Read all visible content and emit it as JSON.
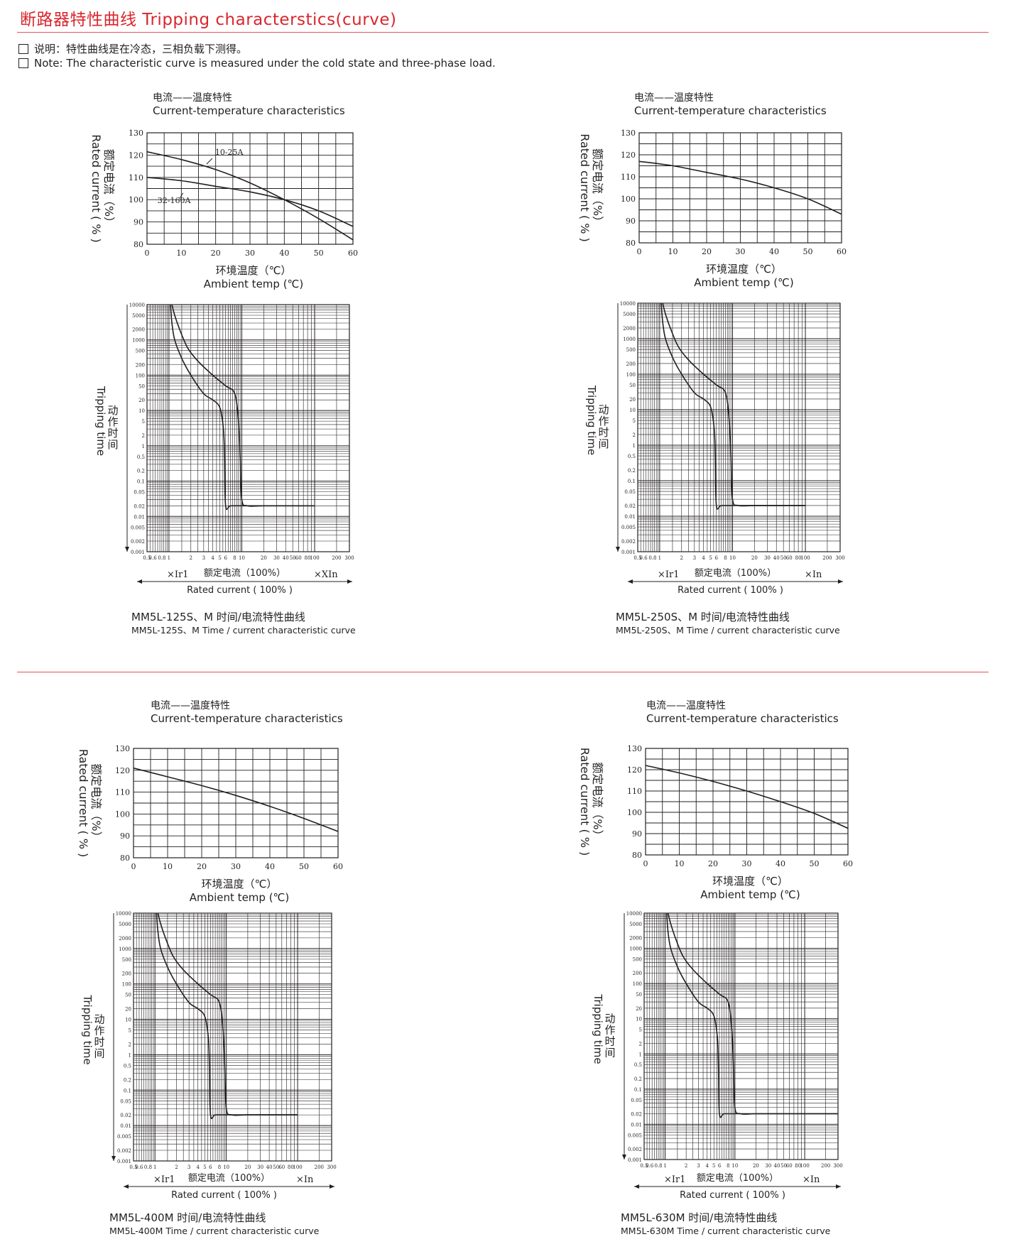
{
  "header": {
    "title": "断路器特性曲线 Tripping characterstics(curve)",
    "note_cn": "说明：特性曲线是在冷态，三相负载下测得。",
    "note_en": "Note: The characteristic curve is measured under the cold state and three-phase load."
  },
  "colors": {
    "accent": "#d9262d",
    "ink": "#231f20"
  },
  "temp_chart_text": {
    "title_cn": "电流——温度特性",
    "title_en": "Current-temperature characteristics",
    "ylabel_cn": "额定电流（%）",
    "ylabel_en": "Rated current ( % )",
    "xlabel_cn": "环境温度（℃）",
    "xlabel_en": "Ambient temp (℃)",
    "xticks": [
      "0",
      "10",
      "20",
      "30",
      "40",
      "50",
      "60"
    ],
    "yticks": [
      "80",
      "90",
      "100",
      "110",
      "120",
      "130"
    ]
  },
  "time_chart_text": {
    "ylabel_cn": "动作时间",
    "ylabel_en": "Tripping time",
    "yticks": [
      "10000",
      "5000",
      "2000",
      "1000",
      "500",
      "200",
      "100",
      "50",
      "20",
      "10",
      "5",
      "2",
      "1",
      "0.5",
      "0.2",
      "0.1",
      "0.05",
      "0.02",
      "0.01",
      "0.005",
      "0.002",
      "0.001"
    ],
    "xticks_a": [
      "0.5",
      "0.6",
      "0.8",
      "1",
      "2",
      "3",
      "4",
      "5",
      "6",
      "8",
      "10",
      "20",
      "30",
      "40",
      "50",
      "60",
      "80",
      "100",
      "200",
      "300"
    ],
    "xlabel_cn": "额定电流（100%）",
    "xlabel_en": "Rated current ( 100% )",
    "x_left": "×Ir1"
  },
  "panels": [
    {
      "x_right": "×XIn",
      "caption_cn": "MM5L-125S、M 时间/电流特性曲线",
      "caption_en": "MM5L-125S、M Time / current characteristic curve"
    },
    {
      "x_right": "×In",
      "caption_cn": "MM5L-250S、M 时间/电流特性曲线",
      "caption_en": "MM5L-250S、M Time / current characteristic curve"
    },
    {
      "x_right": "×In",
      "caption_cn": "MM5L-400M 时间/电流特性曲线",
      "caption_en": "MM5L-400M Time / current characteristic curve"
    },
    {
      "x_right": "×In",
      "caption_cn": "MM5L-630M 时间/电流特性曲线",
      "caption_en": "MM5L-630M Time / current characteristic curve"
    }
  ],
  "chart_data": [
    {
      "type": "line",
      "title": "电流——温度特性 Current-temperature characteristics",
      "panel": "MM5L-125S、M",
      "xlabel": "环境温度（℃） Ambient temp (℃)",
      "ylabel": "额定电流（%） Rated current ( % )",
      "xlim": [
        0,
        60
      ],
      "ylim": [
        80,
        130
      ],
      "series": [
        {
          "name": "10-25A",
          "x": [
            0,
            10,
            20,
            30,
            40,
            50,
            60
          ],
          "y": [
            121.5,
            118,
            113.5,
            107.5,
            100,
            91.5,
            82
          ]
        },
        {
          "name": "32-160A",
          "x": [
            0,
            10,
            20,
            30,
            40,
            50,
            60
          ],
          "y": [
            110,
            108.5,
            106,
            103.5,
            100,
            95,
            88
          ]
        }
      ]
    },
    {
      "type": "line",
      "title": "电流——温度特性 Current-temperature characteristics",
      "panel": "MM5L-250S、M",
      "xlabel": "环境温度（℃） Ambient temp (℃)",
      "ylabel": "额定电流（%） Rated current ( % )",
      "xlim": [
        0,
        60
      ],
      "ylim": [
        80,
        130
      ],
      "series": [
        {
          "x": [
            0,
            10,
            20,
            30,
            40,
            50,
            60
          ],
          "y": [
            117,
            115,
            112,
            109,
            105,
            100,
            93
          ]
        }
      ]
    },
    {
      "type": "line",
      "title": "电流——温度特性 Current-temperature characteristics",
      "panel": "MM5L-400M",
      "xlabel": "环境温度（℃） Ambient temp (℃)",
      "ylabel": "额定电流（%） Rated current ( % )",
      "xlim": [
        0,
        60
      ],
      "ylim": [
        80,
        130
      ],
      "series": [
        {
          "x": [
            0,
            10,
            20,
            30,
            40,
            50,
            60
          ],
          "y": [
            121,
            117,
            113,
            108.5,
            103.5,
            98,
            92
          ]
        }
      ]
    },
    {
      "type": "line",
      "title": "电流——温度特性 Current-temperature characteristics",
      "panel": "MM5L-630M",
      "xlabel": "环境温度（℃） Ambient temp (℃)",
      "ylabel": "额定电流（%） Rated current ( % )",
      "xlim": [
        0,
        60
      ],
      "ylim": [
        80,
        130
      ],
      "series": [
        {
          "x": [
            0,
            10,
            20,
            30,
            40,
            50,
            60
          ],
          "y": [
            122,
            118.5,
            114.5,
            110,
            105,
            99.5,
            92.5
          ]
        }
      ]
    },
    {
      "type": "line",
      "panel": "MM5L-125S、M",
      "log_x": true,
      "log_y": true,
      "xlabel": "额定电流（100%） Rated current ( 100% )",
      "ylabel": "动作时间 Tripping time",
      "xlim": [
        0.5,
        300
      ],
      "ylim": [
        0.001,
        10000
      ],
      "series": [
        {
          "x": [
            1.05,
            1.1,
            1.2,
            1.5,
            2,
            3,
            4,
            5,
            5.6,
            5.8,
            6,
            7,
            10,
            20,
            50,
            100
          ],
          "y": [
            10000,
            3000,
            1000,
            300,
            100,
            30,
            20,
            12,
            3,
            0.5,
            0.02,
            0.02,
            0.02,
            0.02,
            0.02,
            0.02
          ]
        },
        {
          "x": [
            1.1,
            1.2,
            1.4,
            1.8,
            2.5,
            4,
            6,
            8,
            9,
            9.5,
            10,
            12,
            20,
            50,
            100
          ],
          "y": [
            10000,
            5000,
            2000,
            600,
            250,
            100,
            50,
            30,
            5,
            0.5,
            0.03,
            0.02,
            0.02,
            0.02,
            0.02
          ]
        }
      ]
    },
    {
      "type": "line",
      "panel": "MM5L-250S、M",
      "log_x": true,
      "log_y": true,
      "xlabel": "额定电流（100%） Rated current ( 100% )",
      "ylabel": "动作时间 Tripping time",
      "xlim": [
        0.5,
        300
      ],
      "ylim": [
        0.001,
        10000
      ],
      "series": [
        {
          "x": [
            1.05,
            1.1,
            1.2,
            1.5,
            2,
            3,
            4,
            5,
            5.6,
            5.8,
            6,
            7,
            10,
            20,
            50,
            100
          ],
          "y": [
            10000,
            3000,
            1000,
            300,
            100,
            30,
            20,
            12,
            3,
            0.5,
            0.02,
            0.02,
            0.02,
            0.02,
            0.02,
            0.02
          ]
        },
        {
          "x": [
            1.1,
            1.2,
            1.4,
            1.8,
            2.5,
            4,
            6,
            8,
            9,
            9.5,
            10,
            12,
            20,
            50,
            100
          ],
          "y": [
            10000,
            5000,
            2000,
            600,
            250,
            100,
            50,
            30,
            5,
            0.5,
            0.03,
            0.02,
            0.02,
            0.02,
            0.02
          ]
        }
      ]
    },
    {
      "type": "line",
      "panel": "MM5L-400M",
      "log_x": true,
      "log_y": true,
      "xlabel": "额定电流（100%） Rated current ( 100% )",
      "ylabel": "动作时间 Tripping time",
      "xlim": [
        0.5,
        300
      ],
      "ylim": [
        0.001,
        10000
      ],
      "series": [
        {
          "x": [
            1.05,
            1.1,
            1.2,
            1.5,
            2,
            3,
            4,
            5,
            5.6,
            5.8,
            6,
            7,
            10,
            20,
            50,
            100
          ],
          "y": [
            10000,
            3000,
            1000,
            300,
            100,
            30,
            20,
            12,
            3,
            0.5,
            0.02,
            0.02,
            0.02,
            0.02,
            0.02,
            0.02
          ]
        },
        {
          "x": [
            1.1,
            1.2,
            1.4,
            1.8,
            2.5,
            4,
            6,
            8,
            9,
            9.5,
            10,
            12,
            20,
            50,
            100
          ],
          "y": [
            10000,
            5000,
            2000,
            600,
            250,
            100,
            50,
            30,
            5,
            0.5,
            0.03,
            0.02,
            0.02,
            0.02,
            0.02
          ]
        }
      ]
    },
    {
      "type": "line",
      "panel": "MM5L-630M",
      "log_x": true,
      "log_y": true,
      "xlabel": "额定电流（100%） Rated current ( 100% )",
      "ylabel": "动作时间 Tripping time",
      "xlim": [
        0.5,
        300
      ],
      "ylim": [
        0.001,
        10000
      ],
      "series": [
        {
          "x": [
            1.05,
            1.1,
            1.2,
            1.5,
            2,
            3,
            4,
            5,
            5.6,
            5.8,
            6,
            7,
            10,
            20,
            50,
            100,
            300
          ],
          "y": [
            10000,
            3000,
            1000,
            300,
            100,
            30,
            20,
            12,
            3,
            0.5,
            0.02,
            0.02,
            0.02,
            0.02,
            0.02,
            0.02,
            0.02
          ]
        },
        {
          "x": [
            1.1,
            1.2,
            1.4,
            1.8,
            2.5,
            4,
            6,
            8,
            9,
            9.5,
            10,
            12,
            20,
            50,
            100,
            300
          ],
          "y": [
            10000,
            5000,
            2000,
            600,
            250,
            100,
            50,
            30,
            5,
            0.5,
            0.03,
            0.02,
            0.02,
            0.02,
            0.02,
            0.02
          ]
        }
      ]
    }
  ]
}
